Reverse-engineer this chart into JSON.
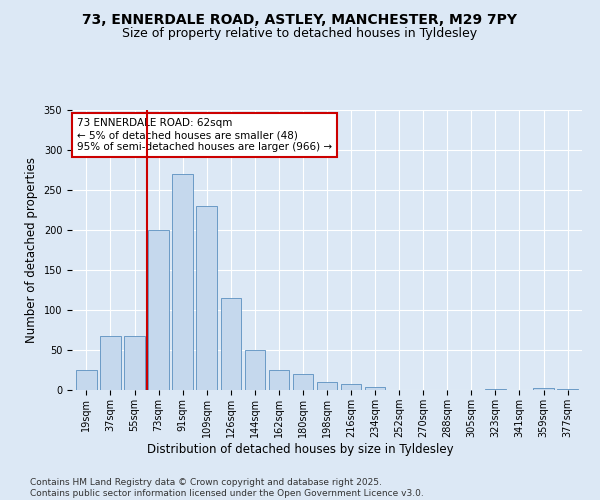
{
  "title": "73, ENNERDALE ROAD, ASTLEY, MANCHESTER, M29 7PY",
  "subtitle": "Size of property relative to detached houses in Tyldesley",
  "xlabel": "Distribution of detached houses by size in Tyldesley",
  "ylabel": "Number of detached properties",
  "categories": [
    "19sqm",
    "37sqm",
    "55sqm",
    "73sqm",
    "91sqm",
    "109sqm",
    "126sqm",
    "144sqm",
    "162sqm",
    "180sqm",
    "198sqm",
    "216sqm",
    "234sqm",
    "252sqm",
    "270sqm",
    "288sqm",
    "305sqm",
    "323sqm",
    "341sqm",
    "359sqm",
    "377sqm"
  ],
  "values": [
    25,
    68,
    68,
    200,
    270,
    230,
    115,
    50,
    25,
    20,
    10,
    8,
    4,
    0,
    0,
    0,
    0,
    1,
    0,
    2,
    1
  ],
  "bar_color": "#c5d8ed",
  "bar_edge_color": "#5a8fc0",
  "vline_x": 2.5,
  "vline_color": "#cc0000",
  "annotation_text": "73 ENNERDALE ROAD: 62sqm\n← 5% of detached houses are smaller (48)\n95% of semi-detached houses are larger (966) →",
  "annotation_box_color": "#ffffff",
  "annotation_box_edge": "#cc0000",
  "ylim": [
    0,
    350
  ],
  "yticks": [
    0,
    50,
    100,
    150,
    200,
    250,
    300,
    350
  ],
  "bg_color": "#dce8f5",
  "plot_bg_color": "#dce8f5",
  "footer_line1": "Contains HM Land Registry data © Crown copyright and database right 2025.",
  "footer_line2": "Contains public sector information licensed under the Open Government Licence v3.0.",
  "title_fontsize": 10,
  "subtitle_fontsize": 9,
  "axis_label_fontsize": 8.5,
  "tick_fontsize": 7,
  "annotation_fontsize": 7.5,
  "footer_fontsize": 6.5
}
